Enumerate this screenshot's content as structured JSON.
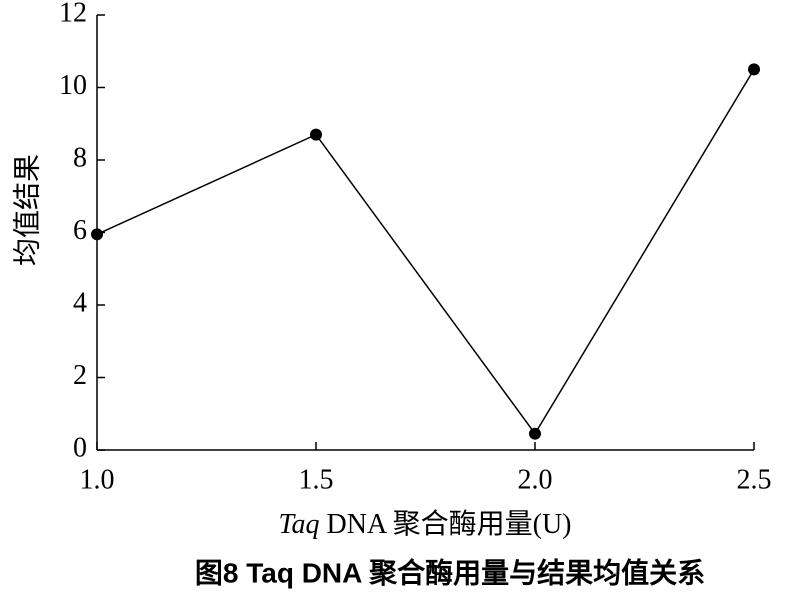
{
  "chart_data": {
    "type": "line",
    "xlabel": "Taq DNA 聚合酶用量(U)",
    "ylabel": "均值结果",
    "caption": "图8  Taq DNA 聚合酶用量与结果均值关系",
    "x": [
      1.0,
      1.5,
      2.0,
      2.5
    ],
    "series": [
      {
        "color": "#000000",
        "values": [
          5.95,
          8.7,
          0.45,
          10.5
        ]
      }
    ],
    "xlim": [
      1.0,
      2.5
    ],
    "xticks": [
      {
        "value": 1,
        "label": "1.0"
      },
      {
        "value": 1.5,
        "label": "1.5"
      },
      {
        "value": 2,
        "label": "2.0"
      },
      {
        "value": 2.5,
        "label": "2.5"
      }
    ],
    "ylim": [
      0,
      12
    ],
    "yticks": [
      0,
      2,
      4,
      6,
      8,
      10,
      12
    ],
    "grid": false
  }
}
